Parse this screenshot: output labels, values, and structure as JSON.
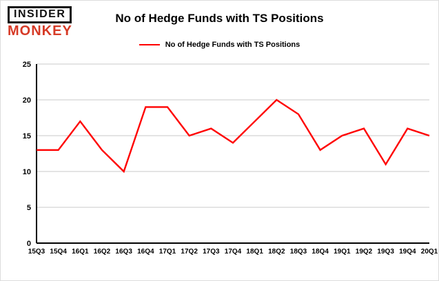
{
  "logo": {
    "line1": "INSIDER",
    "line2": "MONKEY"
  },
  "header": {
    "title": "No of Hedge Funds with TS Positions"
  },
  "legend": {
    "label": "No of Hedge Funds with TS Positions"
  },
  "colors": {
    "line": "#ff0000",
    "grid": "#c9c9c9",
    "axis": "#000000",
    "logo_red": "#d63a26",
    "text": "#000000"
  },
  "chart_data": {
    "type": "line",
    "title": "No of Hedge Funds with TS Positions",
    "categories": [
      "15Q3",
      "15Q4",
      "16Q1",
      "16Q2",
      "16Q3",
      "16Q4",
      "17Q1",
      "17Q2",
      "17Q3",
      "17Q4",
      "18Q1",
      "18Q2",
      "18Q3",
      "18Q4",
      "19Q1",
      "19Q2",
      "19Q3",
      "19Q4",
      "20Q1"
    ],
    "series": [
      {
        "name": "No of Hedge Funds with TS Positions",
        "color": "#ff0000",
        "values": [
          13,
          13,
          17,
          13,
          10,
          19,
          19,
          15,
          16,
          14,
          17,
          20,
          18,
          13,
          15,
          16,
          11,
          16,
          15
        ]
      }
    ],
    "xlabel": "",
    "ylabel": "",
    "ylim": [
      0,
      25
    ],
    "yticks": [
      0,
      5,
      10,
      15,
      20,
      25
    ],
    "grid": true,
    "legend_position": "top-center"
  }
}
